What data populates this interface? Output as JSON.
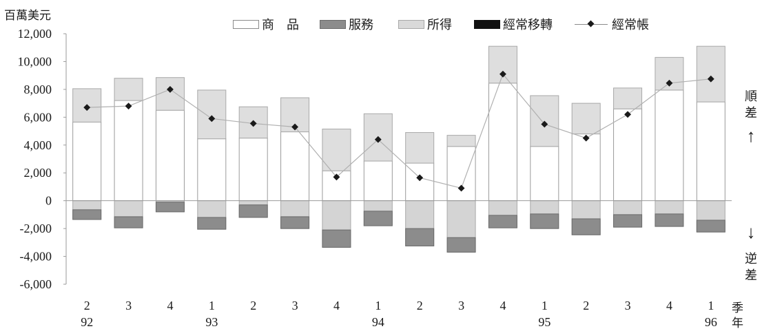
{
  "unit_label": "百萬美元",
  "legend": [
    {
      "key": "goods",
      "label": "商　品",
      "color": "#ffffff",
      "border": "#8a8a8a",
      "kind": "swatch"
    },
    {
      "key": "services",
      "label": "服務",
      "color": "#8c8c8c",
      "border": "#6a6a6a",
      "kind": "swatch"
    },
    {
      "key": "income",
      "label": "所得",
      "color": "#d9d9d9",
      "border": "#a8a8a8",
      "kind": "swatch"
    },
    {
      "key": "transfers",
      "label": "經常移轉",
      "color": "#111111",
      "border": "#111111",
      "kind": "swatch"
    },
    {
      "key": "current_account",
      "label": "經常帳",
      "color": "#1a1a1a",
      "border": "#8a8a8a",
      "kind": "line"
    }
  ],
  "side_labels": {
    "surplus": "順\n差",
    "deficit": "逆\n差",
    "up_arrow": "↑",
    "down_arrow": "↓"
  },
  "x_axis_captions": {
    "quarter": "季",
    "year": "年"
  },
  "chart_data": {
    "type": "bar",
    "stacked": true,
    "categories": [
      "2",
      "3",
      "4",
      "1",
      "2",
      "3",
      "4",
      "1",
      "2",
      "3",
      "4",
      "1",
      "2",
      "3",
      "4",
      "1"
    ],
    "years": [
      {
        "label": "92",
        "index": 0
      },
      {
        "label": "93",
        "index": 3
      },
      {
        "label": "94",
        "index": 7
      },
      {
        "label": "95",
        "index": 11
      },
      {
        "label": "96",
        "index": 15
      }
    ],
    "yticks": [
      12000,
      10000,
      8000,
      6000,
      4000,
      2000,
      0,
      -2000,
      -4000,
      -6000
    ],
    "ytick_labels": [
      "12,000",
      "10,000",
      "8,000",
      "6,000",
      "4,000",
      "2,000",
      "0",
      "-2,000",
      "-4,000",
      "-6,000"
    ],
    "ylim": [
      -6000,
      12000
    ],
    "series": [
      {
        "name": "商　品",
        "values": [
          5650,
          7200,
          6500,
          4450,
          4500,
          4950,
          2150,
          2850,
          2700,
          3900,
          8450,
          3900,
          4800,
          6600,
          7950,
          7100
        ]
      },
      {
        "name": "服務",
        "values": [
          -1350,
          -1950,
          -800,
          -2050,
          -1200,
          -2000,
          -3350,
          -1800,
          -3250,
          -3700,
          -1950,
          -2000,
          -2450,
          -1900,
          -1850,
          -2250
        ]
      },
      {
        "name": "所得",
        "values": [
          2400,
          1600,
          2350,
          3500,
          2250,
          2450,
          3000,
          3400,
          2200,
          800,
          2650,
          3650,
          2200,
          1500,
          2350,
          4000
        ]
      },
      {
        "name": "經常移轉",
        "values": [
          -650,
          -1150,
          -100,
          -1200,
          -300,
          -1150,
          -2100,
          -750,
          -2000,
          -2650,
          -1050,
          -950,
          -1300,
          -1000,
          -950,
          -1400
        ]
      },
      {
        "name": "經常帳",
        "type": "line",
        "values": [
          6700,
          6800,
          8000,
          5900,
          5550,
          5300,
          1700,
          4400,
          1650,
          900,
          9100,
          5500,
          4500,
          6200,
          8450,
          8750
        ]
      }
    ]
  }
}
